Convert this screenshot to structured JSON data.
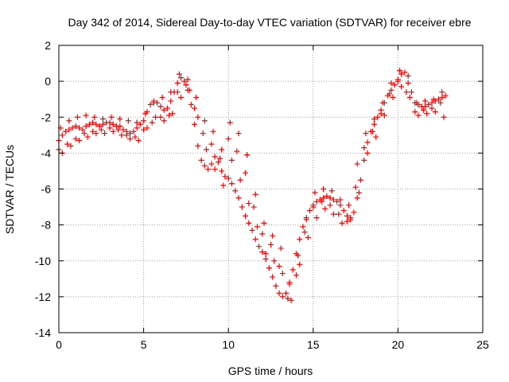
{
  "chart_data": {
    "type": "scatter",
    "title": "Day 342 of 2014, Sidereal Day-to-day VTEC variation (SDTVAR) for receiver ebre",
    "xlabel": "GPS time / hours",
    "ylabel": "SDTVAR / TECUs",
    "xlim": [
      0,
      25
    ],
    "ylim": [
      -14,
      2
    ],
    "xticks": [
      0,
      5,
      10,
      15,
      20,
      25
    ],
    "yticks": [
      -14,
      -12,
      -10,
      -8,
      -6,
      -4,
      -2,
      0,
      2
    ],
    "xtick_labels": [
      "0",
      "5",
      "10",
      "15",
      "20",
      "25"
    ],
    "ytick_labels": [
      "-14",
      "-12",
      "-10",
      "-8",
      "-6",
      "-4",
      "-2",
      "0",
      "2"
    ],
    "grid": true,
    "marker": "+",
    "color": "#ff0000",
    "series": [
      {
        "x": [
          0.0,
          0.2,
          0.4,
          0.6,
          0.8,
          1.0,
          1.2,
          1.4,
          1.6,
          1.8,
          2.0,
          2.2,
          2.4,
          2.6,
          2.8,
          3.0,
          3.2,
          3.4,
          3.6,
          3.8,
          4.0,
          4.2,
          4.4,
          4.6,
          4.8,
          5.0,
          5.2,
          5.4,
          5.6,
          5.8,
          6.0,
          6.2,
          6.4,
          6.6,
          6.8,
          7.0,
          7.2,
          7.4,
          7.6,
          7.8,
          8.0,
          8.2,
          8.4,
          8.6,
          8.8,
          9.0,
          9.2,
          9.4,
          9.6,
          9.8,
          10.0,
          10.2,
          10.4,
          10.6,
          10.8,
          11.0,
          11.2,
          11.4,
          11.6,
          11.8,
          12.0,
          12.2,
          12.4,
          12.6,
          12.8,
          13.0,
          13.2,
          13.4,
          13.6,
          13.8,
          14.0,
          14.2,
          14.4,
          14.6,
          14.8,
          15.0,
          15.2,
          15.4,
          15.6,
          15.8,
          16.0,
          16.2,
          16.4,
          16.6,
          16.8,
          17.0,
          17.2,
          17.4,
          17.6,
          17.8,
          18.0,
          18.2,
          18.4,
          18.6,
          18.8,
          19.0,
          19.2,
          19.4,
          19.6,
          19.8,
          20.0,
          20.2,
          20.4,
          20.6,
          20.8,
          21.0,
          21.2,
          21.4,
          21.6,
          21.8,
          22.0,
          22.2,
          22.4,
          22.6,
          22.8
        ],
        "y": [
          -3.3,
          -3.0,
          -2.8,
          -2.7,
          -2.6,
          -2.5,
          -2.6,
          -2.7,
          -2.5,
          -2.4,
          -2.3,
          -2.4,
          -2.5,
          -2.4,
          -2.3,
          -2.3,
          -2.4,
          -2.5,
          -2.5,
          -2.7,
          -2.8,
          -2.9,
          -2.8,
          -2.6,
          -2.4,
          -2.2,
          -1.7,
          -1.3,
          -1.1,
          -1.2,
          -1.4,
          -1.6,
          -1.5,
          -1.1,
          -0.6,
          -0.1,
          0.2,
          0.0,
          -0.5,
          -1.3,
          -2.4,
          -3.6,
          -4.4,
          -4.7,
          -4.9,
          -4.6,
          -4.2,
          -4.5,
          -5.0,
          -5.3,
          -5.4,
          -5.7,
          -6.1,
          -6.5,
          -7.0,
          -7.5,
          -7.9,
          -8.3,
          -8.8,
          -9.2,
          -9.5,
          -9.9,
          -10.4,
          -10.9,
          -11.4,
          -11.8,
          -12.0,
          -11.8,
          -11.2,
          -10.5,
          -9.6,
          -8.8,
          -8.1,
          -7.6,
          -7.2,
          -6.9,
          -6.7,
          -6.6,
          -6.5,
          -6.4,
          -6.5,
          -6.6,
          -6.7,
          -6.9,
          -7.2,
          -7.5,
          -7.6,
          -7.3,
          -6.5,
          -5.5,
          -4.4,
          -3.4,
          -2.8,
          -2.4,
          -2.0,
          -1.6,
          -1.2,
          -0.8,
          -0.5,
          -0.2,
          0.1,
          0.4,
          0.5,
          0.3,
          -0.6,
          -1.2,
          -1.3,
          -1.4,
          -1.4,
          -1.3,
          -1.2,
          -1.1,
          -1.0,
          -0.9,
          -0.8
        ]
      },
      {
        "x": [
          0.0,
          0.5,
          1.0,
          1.5,
          2.0,
          2.5,
          3.0,
          3.5,
          4.0,
          4.5,
          5.0,
          5.5,
          6.0,
          6.5,
          7.0,
          7.5,
          8.0,
          8.5,
          9.0,
          9.5,
          10.0,
          10.5,
          11.0,
          11.5,
          12.0,
          12.5,
          13.0,
          13.5,
          14.0,
          14.5,
          15.0,
          15.5,
          16.0,
          16.5,
          17.0,
          17.5,
          18.0,
          18.5,
          19.0,
          19.5,
          20.0,
          20.5,
          21.0,
          21.5,
          22.0,
          22.5
        ],
        "y": [
          -3.8,
          -3.5,
          -3.2,
          -2.9,
          -2.8,
          -2.7,
          -2.6,
          -2.7,
          -3.0,
          -3.1,
          -2.7,
          -2.3,
          -2.0,
          -1.9,
          -0.6,
          -0.2,
          -1.5,
          -2.9,
          -3.5,
          -4.3,
          -3.2,
          -3.9,
          -5.1,
          -7.0,
          -8.5,
          -9.1,
          -10.3,
          -12.1,
          -10.8,
          -8.4,
          -7.0,
          -6.7,
          -6.9,
          -7.4,
          -7.8,
          -5.9,
          -3.7,
          -2.8,
          -1.8,
          -0.7,
          0.0,
          -0.6,
          -1.7,
          -1.6,
          -1.5,
          -1.2
        ]
      },
      {
        "x": [
          0.1,
          0.6,
          1.1,
          1.6,
          2.1,
          2.6,
          3.1,
          3.6,
          4.1,
          4.6,
          5.1,
          5.6,
          6.1,
          6.6,
          7.1,
          7.6,
          8.1,
          8.6,
          9.1,
          9.6,
          10.1,
          10.6,
          11.1,
          11.6,
          12.1,
          12.6,
          13.1,
          13.6,
          14.1,
          14.6,
          15.1,
          15.6,
          16.1,
          16.6,
          17.1,
          17.6,
          18.1,
          18.6,
          19.1,
          19.6,
          20.1,
          20.6,
          21.1,
          21.6,
          22.1,
          22.6
        ],
        "y": [
          -2.6,
          -2.2,
          -2.0,
          -1.9,
          -2.0,
          -2.1,
          -2.0,
          -2.1,
          -2.2,
          -2.3,
          -1.8,
          -1.2,
          -0.9,
          -0.6,
          0.4,
          0.1,
          -0.9,
          -2.2,
          -2.8,
          -3.8,
          -2.3,
          -2.9,
          -4.1,
          -6.3,
          -7.9,
          -8.6,
          -9.3,
          -11.3,
          -9.7,
          -7.7,
          -6.2,
          -6.0,
          -6.1,
          -6.6,
          -6.9,
          -4.6,
          -2.9,
          -2.1,
          -1.2,
          -0.1,
          0.6,
          -0.1,
          -1.2,
          -1.1,
          -1.0,
          -0.6
        ]
      },
      {
        "x": [
          0.2,
          0.7,
          1.2,
          1.7,
          2.2,
          2.7,
          3.2,
          3.7,
          4.2,
          4.7,
          5.2,
          5.7,
          6.2,
          6.7,
          7.2,
          7.7,
          8.2,
          8.7,
          9.2,
          9.7,
          10.2,
          10.7,
          11.2,
          11.7,
          12.2,
          12.7,
          13.2,
          13.7,
          14.2,
          14.7,
          15.2,
          15.7,
          16.2,
          16.7,
          17.2,
          17.7,
          18.2,
          18.7,
          19.2,
          19.7,
          20.2,
          20.7,
          21.2,
          21.7,
          22.2,
          22.7
        ],
        "y": [
          -4.0,
          -3.6,
          -3.3,
          -3.1,
          -2.9,
          -2.9,
          -2.8,
          -3.0,
          -3.2,
          -3.3,
          -2.6,
          -2.0,
          -2.2,
          -1.8,
          -0.9,
          -0.5,
          -2.0,
          -3.8,
          -4.9,
          -5.8,
          -4.4,
          -5.5,
          -6.8,
          -8.1,
          -9.6,
          -10.0,
          -10.7,
          -12.2,
          -10.2,
          -8.7,
          -7.6,
          -7.1,
          -7.4,
          -7.9,
          -7.7,
          -6.2,
          -4.0,
          -3.1,
          -1.9,
          -0.9,
          -0.3,
          -0.9,
          -1.9,
          -1.8,
          -1.7,
          -2.0
        ]
      }
    ]
  }
}
